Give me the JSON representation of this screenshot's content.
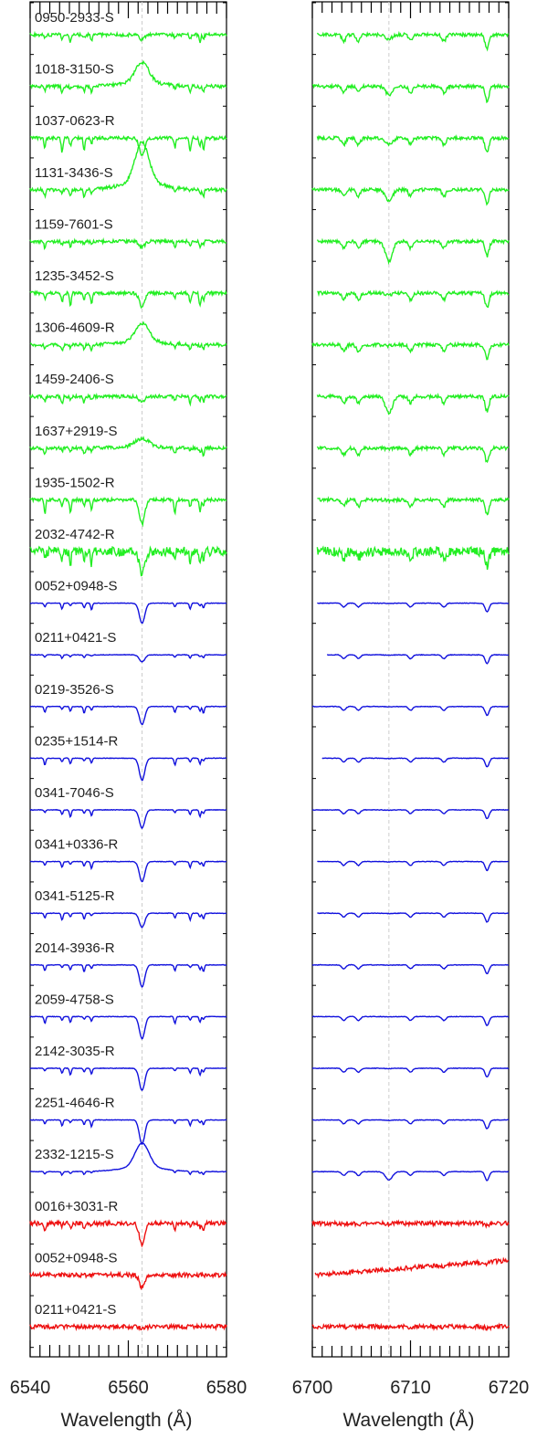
{
  "chart_data": {
    "type": "line",
    "colors": {
      "green": "#22ee22",
      "blue": "#1111dd",
      "red": "#ee1111"
    },
    "panels": [
      {
        "name": "left",
        "xlabel": "Wavelength (Å)",
        "xlim": [
          6540,
          6580
        ],
        "xticks": [
          "6540",
          "6560",
          "6580"
        ],
        "ref_line": 6562.8
      },
      {
        "name": "right",
        "xlabel": "Wavelength (Å)",
        "xlim": [
          6700,
          6720
        ],
        "xticks": [
          "6700",
          "6710",
          "6720"
        ],
        "ref_line": 6707.8
      }
    ],
    "series": [
      {
        "name": "0950-2933-S",
        "color": "green",
        "ha": 0.25,
        "li": 0.25,
        "right_start": 6700.5
      },
      {
        "name": "1018-3150-S",
        "color": "green",
        "ha": -1.0,
        "li": 0.5,
        "right_start": 6700
      },
      {
        "name": "1037-0623-R",
        "color": "green",
        "ha": 0.9,
        "li": 0.4,
        "right_start": 6700.5
      },
      {
        "name": "1131-3436-S",
        "color": "green",
        "ha": -2.0,
        "li": 0.7,
        "right_start": 6700
      },
      {
        "name": "1159-7601-S",
        "color": "green",
        "ha": 0.3,
        "li": 1.2,
        "right_start": 6700.5
      },
      {
        "name": "1235-3452-S",
        "color": "green",
        "ha": 0.7,
        "li": 0.1,
        "right_start": 6700.5
      },
      {
        "name": "1306-4609-R",
        "color": "green",
        "ha": -0.9,
        "li": 0.05,
        "right_start": 6700
      },
      {
        "name": "1459-2406-S",
        "color": "green",
        "ha": 0.3,
        "li": 1.0,
        "right_start": 6700.5
      },
      {
        "name": "1637+2919-S",
        "color": "green",
        "ha": -0.4,
        "li": 0.05,
        "right_start": 6700.5
      },
      {
        "name": "1935-1502-R",
        "color": "green",
        "ha": 1.2,
        "li": 0.05,
        "right_start": 6700.5
      },
      {
        "name": "2032-4742-R",
        "color": "green",
        "ha": 1.1,
        "li": 0.05,
        "right_start": 6700.5
      },
      {
        "name": "0052+0948-S",
        "color": "blue",
        "ha": 1.0,
        "li": 0.02,
        "right_start": 6700.5
      },
      {
        "name": "0211+0421-S",
        "color": "blue",
        "ha": 0.35,
        "li": 0.02,
        "right_start": 6701.5
      },
      {
        "name": "0219-3526-S",
        "color": "blue",
        "ha": 0.9,
        "li": 0.02,
        "right_start": 6700
      },
      {
        "name": "0235+1514-R",
        "color": "blue",
        "ha": 1.1,
        "li": 0.02,
        "right_start": 6701
      },
      {
        "name": "0341-7046-S",
        "color": "blue",
        "ha": 0.9,
        "li": 0.02,
        "right_start": 6700
      },
      {
        "name": "0341+0336-R",
        "color": "blue",
        "ha": 1.0,
        "li": 0.02,
        "right_start": 6700.5
      },
      {
        "name": "0341-5125-R",
        "color": "blue",
        "ha": 0.7,
        "li": 0.02,
        "right_start": 6700.5
      },
      {
        "name": "2014-3936-R",
        "color": "blue",
        "ha": 1.1,
        "li": 0.02,
        "right_start": 6700
      },
      {
        "name": "2059-4758-S",
        "color": "blue",
        "ha": 1.1,
        "li": 0.02,
        "right_start": 6700
      },
      {
        "name": "2142-3035-R",
        "color": "blue",
        "ha": 1.1,
        "li": 0.02,
        "right_start": 6700
      },
      {
        "name": "2251-4646-R",
        "color": "blue",
        "ha": 1.2,
        "li": 0.02,
        "right_start": 6700
      },
      {
        "name": "2332-1215-S",
        "color": "blue",
        "ha": -1.2,
        "li": 0.5,
        "right_start": 6700
      },
      {
        "name": "0016+3031-R",
        "color": "red",
        "ha": 1.1,
        "li": 0.05,
        "right_start": 6700
      },
      {
        "name": "0052+0948-S",
        "color": "red",
        "ha": 0.6,
        "li": 0.05,
        "right_start": 6700.3
      },
      {
        "name": "0211+0421-S",
        "color": "red",
        "ha": 0.1,
        "li": 0.05,
        "right_start": 6700
      }
    ]
  }
}
